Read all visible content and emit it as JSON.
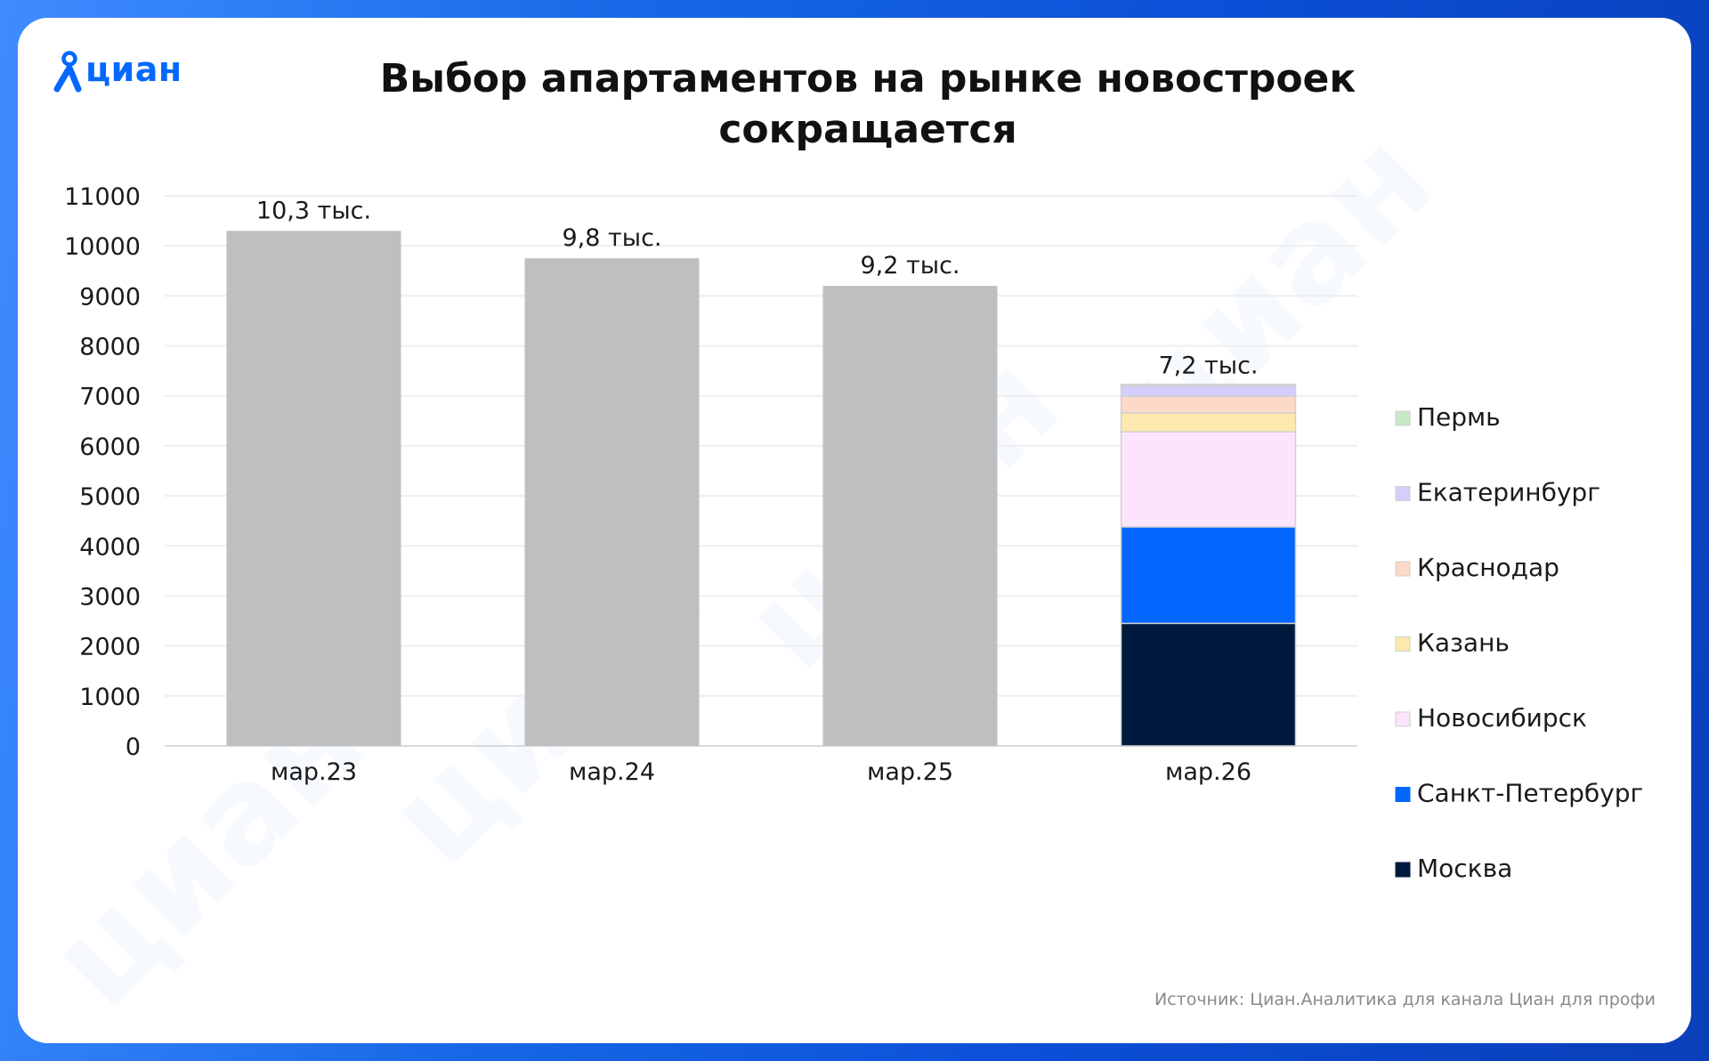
{
  "logo": {
    "text": "циан",
    "icon": "cian-pin-icon",
    "color": "#0468ff"
  },
  "title_line1": "Выбор апартаментов на рынке новостроек",
  "title_line2": "сокращается",
  "source": "Источник: Циан.Аналитика для канала Циан для профи",
  "watermark_text": "циан",
  "chart_data": {
    "type": "bar",
    "stacked_last": true,
    "categories": [
      "мар.23",
      "мар.24",
      "мар.25",
      "мар.26"
    ],
    "totals": [
      10300,
      9750,
      9200,
      7200
    ],
    "total_labels": [
      "10,3 тыс.",
      "9,8 тыс.",
      "9,2 тыс.",
      "7,2 тыс."
    ],
    "total_color": "#bfbfbf",
    "ylim": [
      0,
      11000
    ],
    "yticks": [
      0,
      1000,
      2000,
      3000,
      4000,
      5000,
      6000,
      7000,
      8000,
      9000,
      10000,
      11000
    ],
    "grid": true,
    "legend_position": "right",
    "series": [
      {
        "name": "Москва",
        "color": "#001a3d",
        "values": [
          null,
          null,
          null,
          2450
        ]
      },
      {
        "name": "Санкт-Петербург",
        "color": "#0468ff",
        "values": [
          null,
          null,
          null,
          1930
        ]
      },
      {
        "name": "Новосибирск",
        "color": "#fce4fc",
        "values": [
          null,
          null,
          null,
          1900
        ]
      },
      {
        "name": "Казань",
        "color": "#fde8ad",
        "values": [
          null,
          null,
          null,
          380
        ]
      },
      {
        "name": "Краснодар",
        "color": "#fdd9c7",
        "values": [
          null,
          null,
          null,
          330
        ]
      },
      {
        "name": "Екатеринбург",
        "color": "#d5cdfb",
        "values": [
          null,
          null,
          null,
          210
        ]
      },
      {
        "name": "Пермь",
        "color": "#c8e8c6",
        "values": [
          null,
          null,
          null,
          30
        ]
      }
    ]
  }
}
